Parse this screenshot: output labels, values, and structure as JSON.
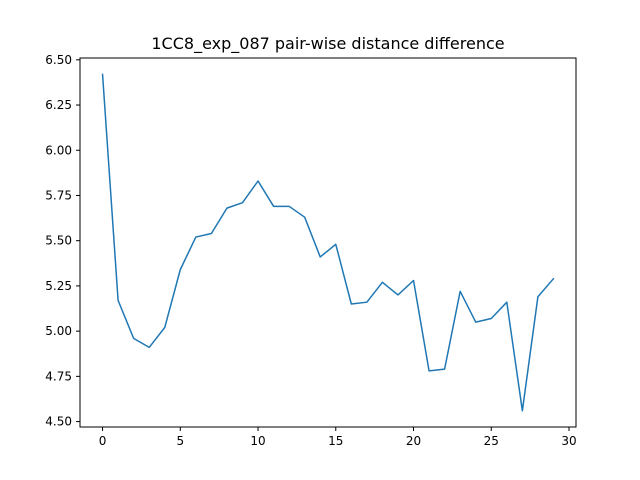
{
  "chart_data": {
    "type": "line",
    "title": "1CC8_exp_087 pair-wise distance difference",
    "xlabel": "",
    "ylabel": "",
    "xlim": [
      -1.45,
      30.45
    ],
    "ylim": [
      4.47,
      6.51
    ],
    "xticks": [
      0,
      5,
      10,
      15,
      20,
      25,
      30
    ],
    "yticks": [
      4.5,
      4.75,
      5.0,
      5.25,
      5.5,
      5.75,
      6.0,
      6.25,
      6.5
    ],
    "xtick_labels": [
      "0",
      "5",
      "10",
      "15",
      "20",
      "25",
      "30"
    ],
    "ytick_labels": [
      "4.50",
      "4.75",
      "5.00",
      "5.25",
      "5.50",
      "5.75",
      "6.00",
      "6.25",
      "6.50"
    ],
    "grid": false,
    "series": [
      {
        "color": "#1f77b4",
        "x": [
          0,
          1,
          2,
          3,
          4,
          5,
          6,
          7,
          8,
          9,
          10,
          11,
          12,
          13,
          14,
          15,
          16,
          17,
          18,
          19,
          20,
          21,
          22,
          23,
          24,
          25,
          26,
          27,
          28,
          29
        ],
        "y": [
          6.42,
          5.17,
          4.96,
          4.91,
          5.02,
          5.34,
          5.52,
          5.54,
          5.68,
          5.71,
          5.83,
          5.69,
          5.69,
          5.63,
          5.41,
          5.48,
          5.15,
          5.16,
          5.27,
          5.2,
          5.28,
          4.78,
          4.79,
          5.22,
          5.05,
          5.07,
          5.16,
          4.56,
          5.19,
          5.29
        ]
      }
    ]
  }
}
